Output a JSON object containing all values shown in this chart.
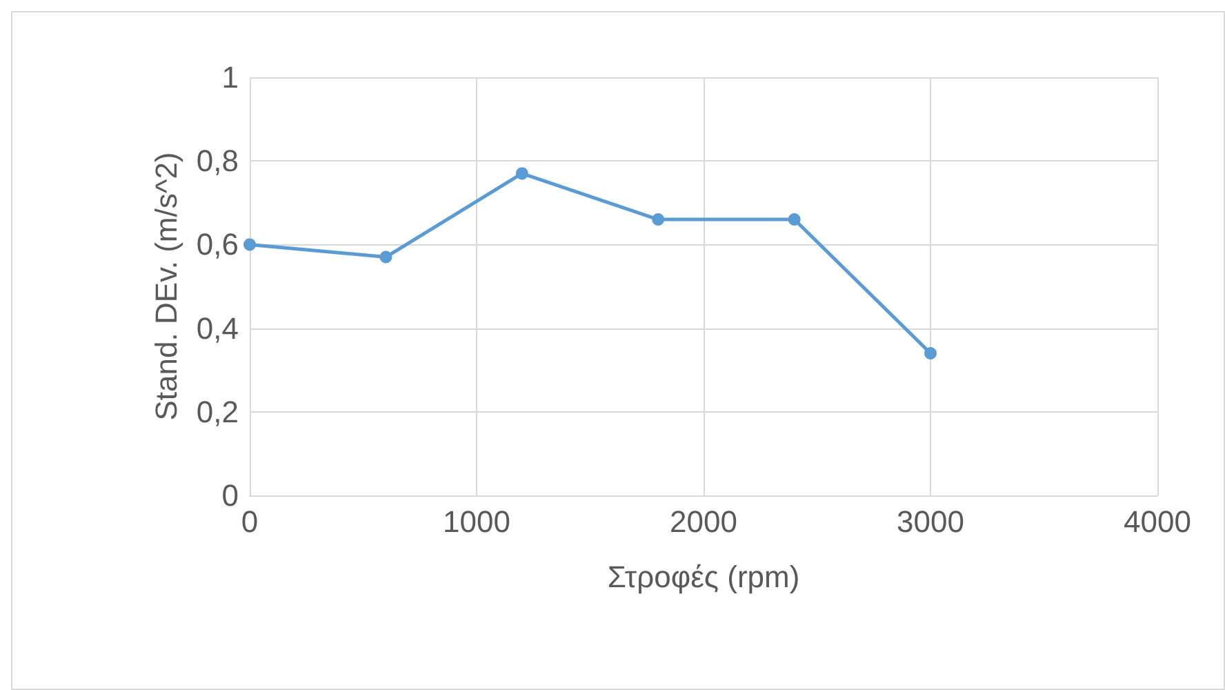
{
  "chart_data": {
    "type": "line",
    "xlabel": "Στροφές (rpm)",
    "ylabel": "Stand. DEv. (m/s^2)",
    "x": [
      0,
      600,
      1200,
      1800,
      2400,
      3000
    ],
    "series": [
      {
        "color": "#5b9bd5",
        "values": [
          0.6,
          0.57,
          0.77,
          0.66,
          0.66,
          0.34
        ]
      }
    ],
    "xlim": [
      0,
      4000
    ],
    "xticks": [
      0,
      1000,
      2000,
      3000,
      4000
    ],
    "ylim": [
      0,
      1
    ],
    "yticks": [
      0,
      {
        "value": 0.2,
        "label": "0,2"
      },
      {
        "value": 0.4,
        "label": "0,4"
      },
      {
        "value": 0.6,
        "label": "0,6"
      },
      {
        "value": 0.8,
        "label": "0,8"
      },
      1
    ],
    "grid": true,
    "marker": "circle",
    "line_style": "solid"
  }
}
